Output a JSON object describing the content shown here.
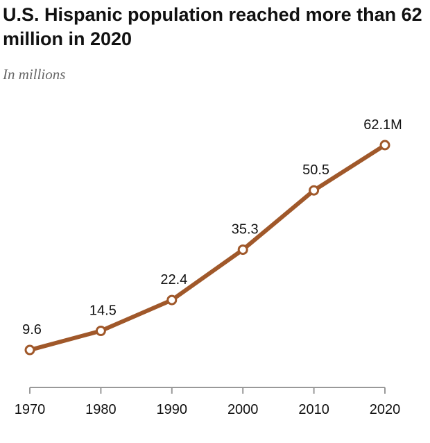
{
  "chart_data": {
    "type": "line",
    "title": "U.S. Hispanic population reached more than 62 million in 2020",
    "subtitle": "In millions",
    "xlabel": "",
    "ylabel": "",
    "categories": [
      "1970",
      "1980",
      "1990",
      "2000",
      "2010",
      "2020"
    ],
    "series": [
      {
        "name": "U.S. Hispanic population",
        "values": [
          9.6,
          14.5,
          22.4,
          35.3,
          50.5,
          62.1
        ],
        "labels": [
          "9.6",
          "14.5",
          "22.4",
          "35.3",
          "50.5",
          "62.1M"
        ]
      }
    ],
    "ylim": [
      0,
      65
    ],
    "grid": false,
    "colors": {
      "line": "#a0582a",
      "axis": "#999999"
    }
  }
}
